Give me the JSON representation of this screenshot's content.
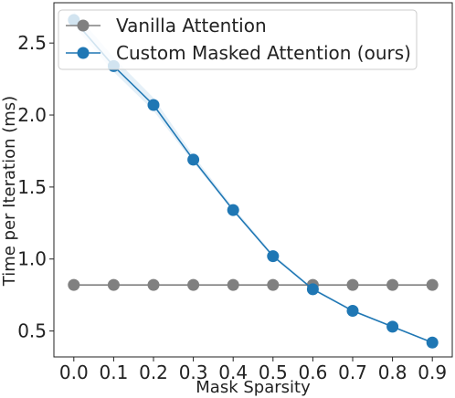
{
  "chart_data": {
    "type": "line",
    "xlabel": "Mask Sparsity",
    "ylabel": "Time per Iteration (ms)",
    "x": [
      0.0,
      0.1,
      0.2,
      0.3,
      0.4,
      0.5,
      0.6,
      0.7,
      0.8,
      0.9
    ],
    "x_tick_labels": [
      "0.0",
      "0.1",
      "0.2",
      "0.3",
      "0.4",
      "0.5",
      "0.6",
      "0.7",
      "0.8",
      "0.9"
    ],
    "y_ticks": [
      0.5,
      1.0,
      1.5,
      2.0,
      2.5
    ],
    "y_tick_labels": [
      "0.5",
      "1.0",
      "1.5",
      "2.0",
      "2.5"
    ],
    "xlim": [
      -0.05,
      0.95
    ],
    "ylim": [
      0.32,
      2.78
    ],
    "grid": false,
    "legend_position": "top-left",
    "series": [
      {
        "name": "Vanilla Attention",
        "color": "#808080",
        "values": [
          0.82,
          0.82,
          0.82,
          0.82,
          0.82,
          0.82,
          0.82,
          0.82,
          0.82,
          0.82
        ]
      },
      {
        "name": "Custom Masked Attention (ours)",
        "color": "#1f77b4",
        "band_color": "#cfe3f3",
        "values": [
          2.66,
          2.34,
          2.07,
          1.69,
          1.34,
          1.02,
          0.79,
          0.64,
          0.53,
          0.42
        ],
        "lower": [
          2.62,
          2.3,
          2.03,
          1.67,
          1.33,
          1.01,
          0.785,
          0.635,
          0.525,
          0.415
        ],
        "upper": [
          2.72,
          2.4,
          2.12,
          1.72,
          1.36,
          1.035,
          0.8,
          0.65,
          0.535,
          0.425
        ]
      }
    ]
  }
}
